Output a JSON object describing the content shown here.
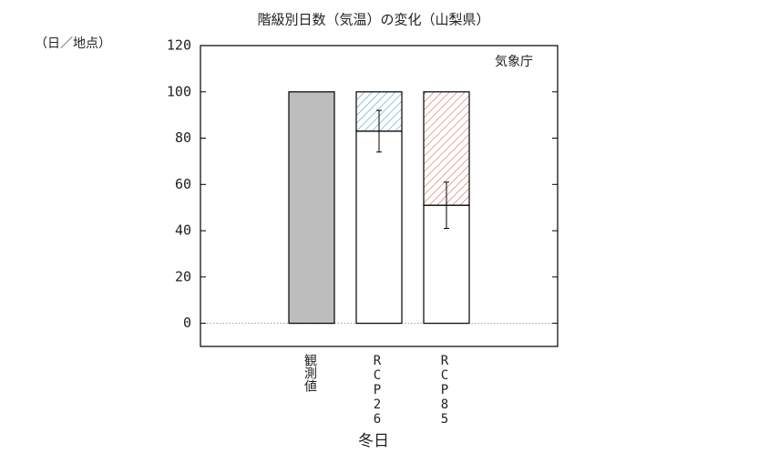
{
  "chart_data": {
    "type": "stacked-bar",
    "title": "階級別日数（気温）の変化（山梨県）",
    "y_unit": "（日／地点）",
    "annotation": "気象庁",
    "xlabel": "冬日",
    "categories": [
      "観測値",
      "RCP26",
      "RCP85"
    ],
    "series": [
      {
        "values": [
          100,
          83,
          51
        ],
        "colors": [
          "#bdbdbd",
          "#ffffff",
          "#ffffff"
        ],
        "errors": [
          null,
          9,
          10
        ]
      },
      {
        "values": [
          null,
          17,
          49
        ],
        "colors": [
          null,
          "#3a8fc8",
          "#c8483a"
        ],
        "hatched": true
      }
    ],
    "ylim": [
      -10,
      120
    ],
    "yticks": [
      0,
      20,
      40,
      60,
      80,
      100,
      120
    ]
  }
}
